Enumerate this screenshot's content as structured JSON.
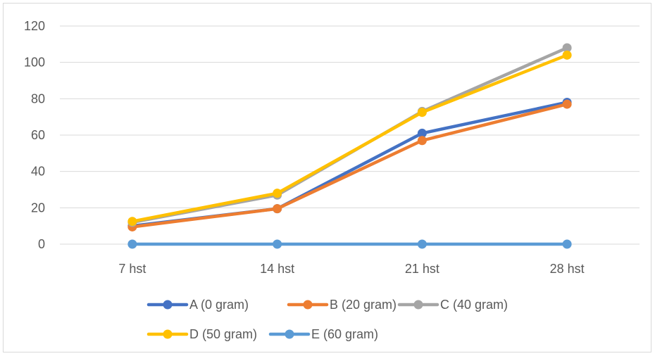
{
  "chart_data": {
    "type": "line",
    "title": "",
    "xlabel": "",
    "ylabel": "",
    "categories": [
      "7 hst",
      "14 hst",
      "21 hst",
      "28 hst"
    ],
    "ylim": [
      0,
      120
    ],
    "yticks": [
      0,
      20,
      40,
      60,
      80,
      100,
      120
    ],
    "grid": true,
    "legend": "bottom",
    "series": [
      {
        "name": "A (0 gram)",
        "values": [
          10,
          19.5,
          61,
          78
        ],
        "color": "#4472c4"
      },
      {
        "name": "B (20 gram)",
        "values": [
          9.5,
          19.5,
          57,
          77
        ],
        "color": "#ed7d31"
      },
      {
        "name": "C (40 gram)",
        "values": [
          12,
          27,
          73,
          108
        ],
        "color": "#a5a5a5"
      },
      {
        "name": "D (50 gram)",
        "values": [
          12.5,
          28,
          72.5,
          104
        ],
        "color": "#ffc000"
      },
      {
        "name": "E (60 gram)",
        "values": [
          0,
          0,
          0,
          0
        ],
        "color": "#5b9bd5"
      }
    ]
  }
}
